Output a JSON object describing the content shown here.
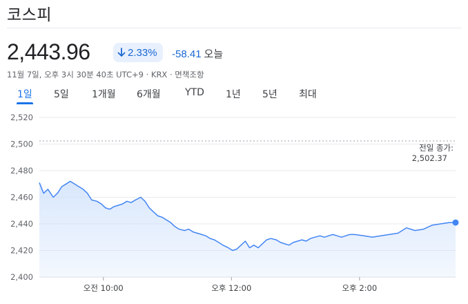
{
  "header": {
    "title": "코스피",
    "price": "2,443.96",
    "change_pct": "2.33%",
    "change_abs": "-58.41",
    "change_period": "오늘",
    "meta": "11월 7일, 오후 3시 30분 40초 UTC+9 · KRX · 면책조항",
    "change_color": "#1967d2",
    "change_bg": "#e8f0fe"
  },
  "tabs": [
    {
      "label": "1일",
      "active": true
    },
    {
      "label": "5일",
      "active": false
    },
    {
      "label": "1개월",
      "active": false
    },
    {
      "label": "6개월",
      "active": false
    },
    {
      "label": "YTD",
      "active": false
    },
    {
      "label": "1년",
      "active": false
    },
    {
      "label": "5년",
      "active": false
    },
    {
      "label": "최대",
      "active": false
    }
  ],
  "chart_data": {
    "type": "area",
    "ylim": [
      2400,
      2520
    ],
    "yticks": [
      2520,
      2500,
      2480,
      2460,
      2440,
      2420,
      2400
    ],
    "ytick_labels": [
      "2,520",
      "2,500",
      "2,480",
      "2,460",
      "2,440",
      "2,420",
      "2,400"
    ],
    "x_range": [
      "09:00",
      "15:30"
    ],
    "xticks": [
      "10:00",
      "12:00",
      "14:00"
    ],
    "xtick_labels": [
      "오전 10:00",
      "오후 12:00",
      "오후 2:00"
    ],
    "grid": true,
    "line_color": "#4285f4",
    "fill_color": "#d2e3fc",
    "previous_close": {
      "label": "전일 종가:",
      "value": 2502.37,
      "value_label": "2,502.37"
    },
    "series": [
      {
        "x": [
          "09:00",
          "09:04",
          "09:08",
          "09:13",
          "09:17",
          "09:21",
          "09:25",
          "09:29",
          "09:33",
          "09:37",
          "09:41",
          "09:45",
          "09:49",
          "09:54",
          "09:58",
          "10:02",
          "10:06",
          "10:10",
          "10:14",
          "10:18",
          "10:22",
          "10:26",
          "10:30",
          "10:35",
          "10:39",
          "10:43",
          "10:47",
          "10:51",
          "10:55",
          "10:59",
          "11:03",
          "11:07",
          "11:11",
          "11:16",
          "11:20",
          "11:24",
          "11:28",
          "11:32",
          "11:36",
          "11:40",
          "11:44",
          "11:48",
          "11:52",
          "11:57",
          "12:01",
          "12:05",
          "12:09",
          "12:13",
          "12:17",
          "12:21",
          "12:25",
          "12:29",
          "12:33",
          "12:37",
          "12:42",
          "12:46",
          "12:50",
          "12:54",
          "12:58",
          "13:02",
          "13:06",
          "13:10",
          "13:14",
          "13:18",
          "13:23",
          "13:27",
          "13:31",
          "13:35",
          "13:39",
          "13:43",
          "13:47",
          "13:51",
          "13:55",
          "14:04",
          "14:12",
          "14:20",
          "14:28",
          "14:36",
          "14:44",
          "14:52",
          "15:00",
          "15:08",
          "15:16",
          "15:24",
          "15:30"
        ],
        "values": [
          2471,
          2463,
          2466,
          2460,
          2463,
          2468,
          2470,
          2472,
          2470,
          2468,
          2466,
          2463,
          2458,
          2457,
          2455,
          2452,
          2451,
          2453,
          2454,
          2455,
          2457,
          2456,
          2458,
          2460,
          2457,
          2452,
          2449,
          2446,
          2445,
          2443,
          2441,
          2438,
          2436,
          2435,
          2436,
          2434,
          2433,
          2432,
          2431,
          2429,
          2428,
          2426,
          2424,
          2422,
          2420,
          2421,
          2424,
          2427,
          2422,
          2424,
          2422,
          2425,
          2428,
          2429,
          2428,
          2426,
          2425,
          2424,
          2426,
          2427,
          2428,
          2427,
          2429,
          2430,
          2431,
          2430,
          2431,
          2432,
          2431,
          2430,
          2431,
          2432,
          2432,
          2431,
          2430,
          2431,
          2432,
          2433,
          2437,
          2435,
          2436,
          2439,
          2440,
          2441,
          2441
        ]
      }
    ]
  }
}
